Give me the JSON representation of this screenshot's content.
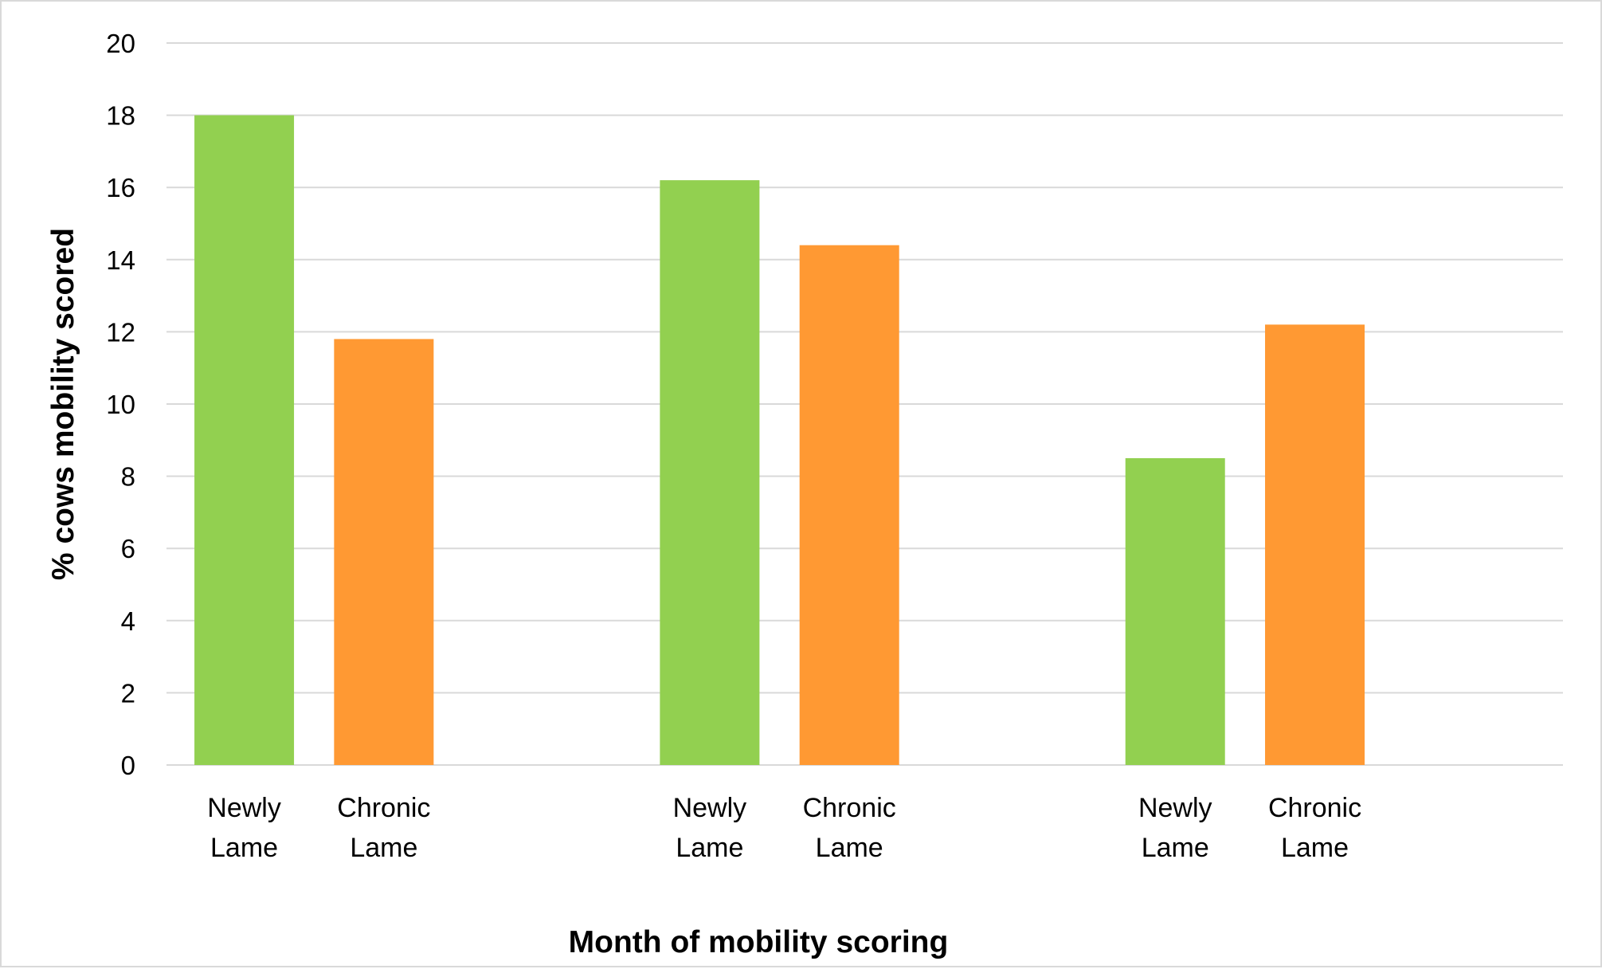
{
  "chart_data": {
    "type": "bar",
    "title": "",
    "xlabel": "Month of mobility scoring",
    "ylabel": "% cows mobility scored",
    "ylim": [
      0,
      20
    ],
    "yticks": [
      0,
      2,
      4,
      6,
      8,
      10,
      12,
      14,
      16,
      18,
      20
    ],
    "grid": true,
    "legend": "none",
    "groups": [
      {
        "bars": [
          {
            "label": "Newly Lame",
            "value": 18.0,
            "color": "#92d050"
          },
          {
            "label": "Chronic Lame",
            "value": 11.8,
            "color": "#ff9933"
          }
        ]
      },
      {
        "bars": [
          {
            "label": "Newly Lame",
            "value": 16.2,
            "color": "#92d050"
          },
          {
            "label": "Chronic Lame",
            "value": 14.4,
            "color": "#ff9933"
          }
        ]
      },
      {
        "bars": [
          {
            "label": "Newly Lame",
            "value": 8.5,
            "color": "#92d050"
          },
          {
            "label": "Chronic Lame",
            "value": 12.2,
            "color": "#ff9933"
          }
        ]
      }
    ]
  }
}
